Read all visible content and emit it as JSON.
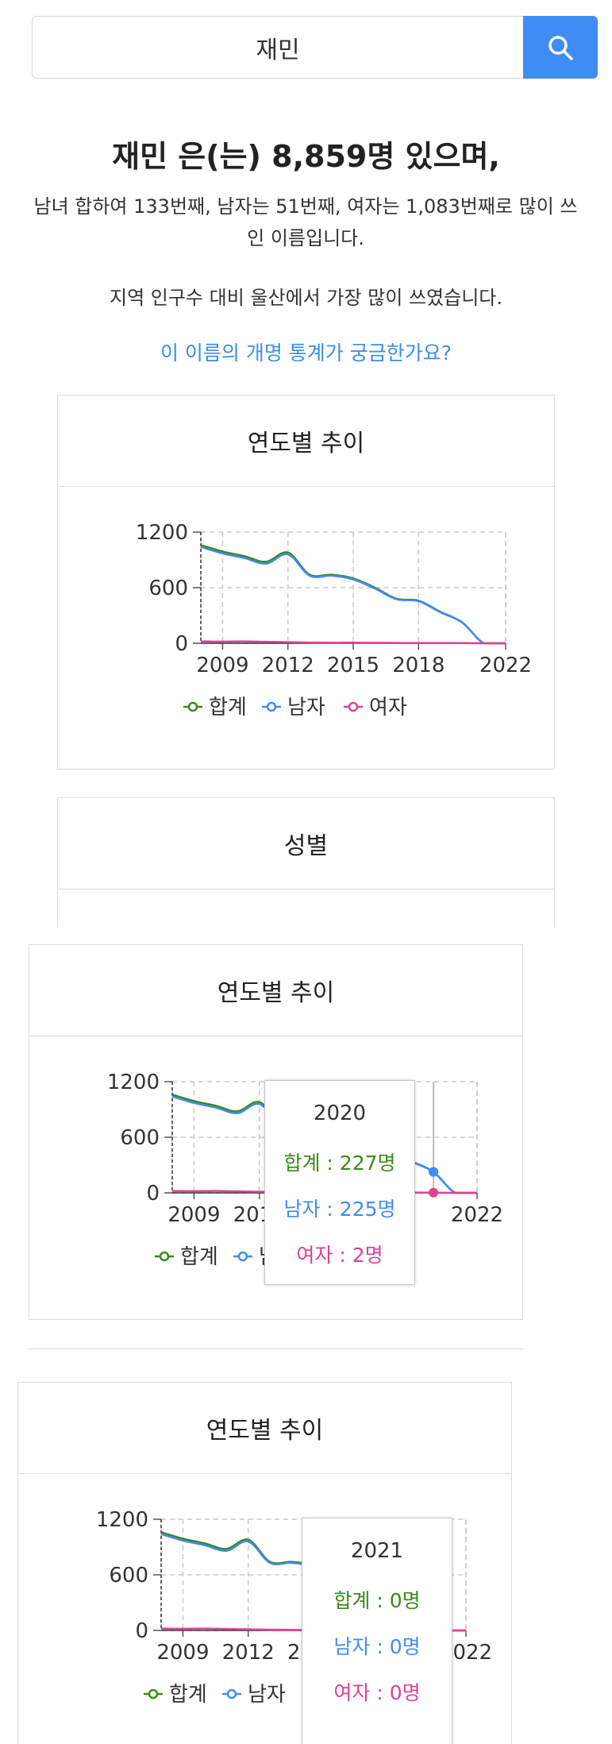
{
  "search": {
    "value": "재민"
  },
  "summary": {
    "headline": "재민 은(는) 8,859명 있으며,",
    "rank_text": "남녀 합하여 133번째, 남자는 51번째, 여자는 1,083번째로 많이 쓰인 이름입니다.",
    "region_text": "지역 인구수 대비 울산에서 가장 많이 쓰였습니다.",
    "rename_link": "이 이름의 개명 통계가 궁금한가요?"
  },
  "cards": {
    "trend_title": "연도별 추이",
    "gender_title": "성별"
  },
  "tooltips": [
    {
      "year": "2020",
      "total": "합계 : 227명",
      "male": "남자 : 225명",
      "female": "여자 : 2명"
    },
    {
      "year": "2021",
      "total": "합계 : 0명",
      "male": "남자 : 0명",
      "female": "여자 : 0명"
    }
  ],
  "colors": {
    "total": "#3a8a18",
    "male": "#3f8cf4",
    "female": "#e0428f",
    "accent": "#3f8cf4"
  },
  "chart_data": {
    "type": "line",
    "title": "연도별 추이",
    "x": [
      2008,
      2009,
      2010,
      2011,
      2012,
      2013,
      2014,
      2015,
      2016,
      2017,
      2018,
      2019,
      2020,
      2021,
      2022
    ],
    "x_ticks": [
      "2009",
      "2012",
      "2015",
      "2018",
      "2022"
    ],
    "y_ticks": [
      "0",
      "600",
      "1200"
    ],
    "ylim": [
      0,
      1200
    ],
    "series": [
      {
        "name": "합계",
        "values": [
          1060,
          990,
          940,
          880,
          980,
          740,
          740,
          700,
          600,
          480,
          460,
          340,
          227,
          0,
          0
        ]
      },
      {
        "name": "남자",
        "values": [
          1040,
          970,
          920,
          860,
          960,
          730,
          730,
          690,
          590,
          475,
          455,
          335,
          225,
          0,
          0
        ]
      },
      {
        "name": "여자",
        "values": [
          20,
          18,
          20,
          16,
          12,
          8,
          6,
          6,
          5,
          4,
          3,
          3,
          2,
          0,
          0
        ]
      }
    ],
    "grid": true,
    "legend": "bottom"
  }
}
